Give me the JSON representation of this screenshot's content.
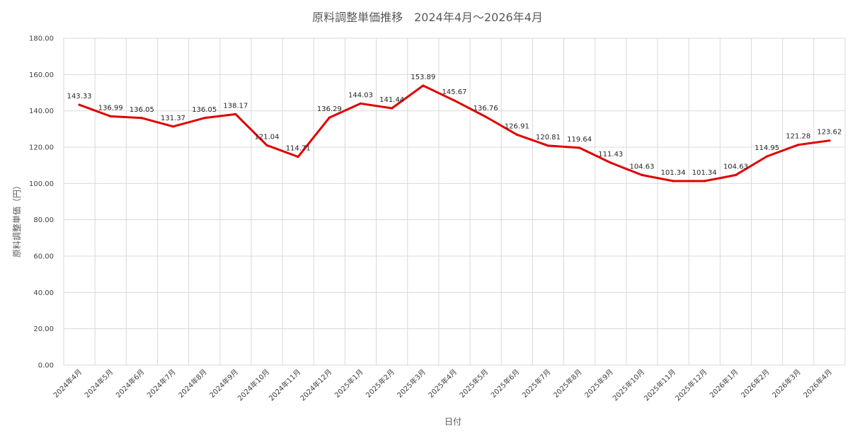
{
  "chart_data": {
    "type": "line",
    "title": "原料調整単価推移　2024年4月～2026年4月",
    "xlabel": "日付",
    "ylabel": "原料調整単価（円）",
    "ylim": [
      0,
      180
    ],
    "yticks": [
      "0.00",
      "20.00",
      "40.00",
      "60.00",
      "80.00",
      "100.00",
      "120.00",
      "140.00",
      "160.00",
      "180.00"
    ],
    "grid": true,
    "categories": [
      "2024年4月",
      "2024年5月",
      "2024年6月",
      "2024年7月",
      "2024年8月",
      "2024年9月",
      "2024年10月",
      "2024年11月",
      "2024年12月",
      "2025年1月",
      "2025年2月",
      "2025年3月",
      "2025年4月",
      "2025年5月",
      "2025年6月",
      "2025年7月",
      "2025年8月",
      "2025年9月",
      "2025年10月",
      "2025年11月",
      "2025年12月",
      "2026年1月",
      "2026年2月",
      "2026年3月",
      "2026年4月"
    ],
    "series": [
      {
        "values": [
          143.33,
          136.99,
          136.05,
          131.37,
          136.05,
          138.17,
          121.04,
          114.71,
          136.29,
          144.03,
          141.44,
          153.89,
          145.67,
          136.76,
          126.91,
          120.81,
          119.64,
          111.43,
          104.63,
          101.34,
          101.34,
          104.63,
          114.95,
          121.28,
          123.62
        ],
        "labels": [
          "143.33",
          "136.99",
          "136.05",
          "131.37",
          "136.05",
          "138.17",
          "121.04",
          "114.71",
          "136.29",
          "144.03",
          "141.44",
          "153.89",
          "145.67",
          "136.76",
          "126.91",
          "120.81",
          "119.64",
          "111.43",
          "104.63",
          "101.34",
          "101.34",
          "104.63",
          "114.95",
          "121.28",
          "123.62"
        ],
        "color": "#e00000"
      }
    ]
  }
}
